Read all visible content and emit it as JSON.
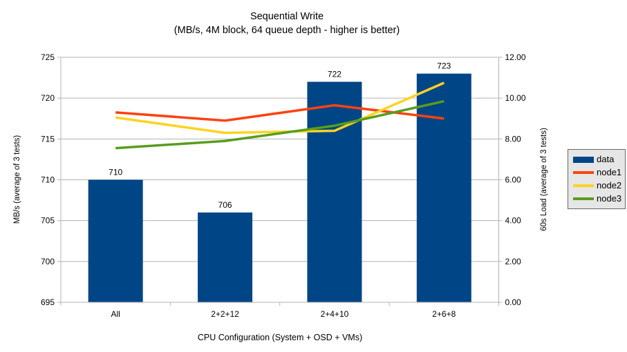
{
  "chart_data": {
    "type": "bar",
    "title": "Sequential Write",
    "subtitle": "(MB/s, 4M block, 64 queue depth - higher is better)",
    "xlabel": "CPU Configuration (System + OSD + VMs)",
    "ylabel_left": "MB/s (average of 3 tests)",
    "ylabel_right": "60s Load (average of 3 tests)",
    "categories": [
      "All",
      "2+2+12",
      "2+4+10",
      "2+6+8"
    ],
    "bar_series": {
      "name": "data",
      "axis": "left",
      "values": [
        710,
        706,
        722,
        723
      ],
      "data_labels": [
        "710",
        "706",
        "722",
        "723"
      ],
      "color": "#004586"
    },
    "line_series": [
      {
        "name": "node1",
        "axis": "right",
        "values": [
          9.3,
          8.9,
          9.65,
          9.0
        ],
        "color": "#ff420e"
      },
      {
        "name": "node2",
        "axis": "right",
        "values": [
          9.05,
          8.3,
          8.4,
          10.75
        ],
        "color": "#ffd320"
      },
      {
        "name": "node3",
        "axis": "right",
        "values": [
          7.55,
          7.9,
          8.65,
          9.85
        ],
        "color": "#579d1c"
      }
    ],
    "ylim_left": [
      695,
      725
    ],
    "yticks_left": [
      "695",
      "700",
      "705",
      "710",
      "715",
      "720",
      "725"
    ],
    "ylim_right": [
      0,
      12
    ],
    "yticks_right": [
      "0.00",
      "2.00",
      "4.00",
      "6.00",
      "8.00",
      "10.00",
      "12.00"
    ],
    "grid": true,
    "legend_position": "right",
    "colors": {
      "grid_line": "#b3b3b3",
      "axis_line": "#b3b3b3",
      "legend_background": "#e6e6e6",
      "legend_border": "#666666",
      "text": "#000000"
    }
  }
}
